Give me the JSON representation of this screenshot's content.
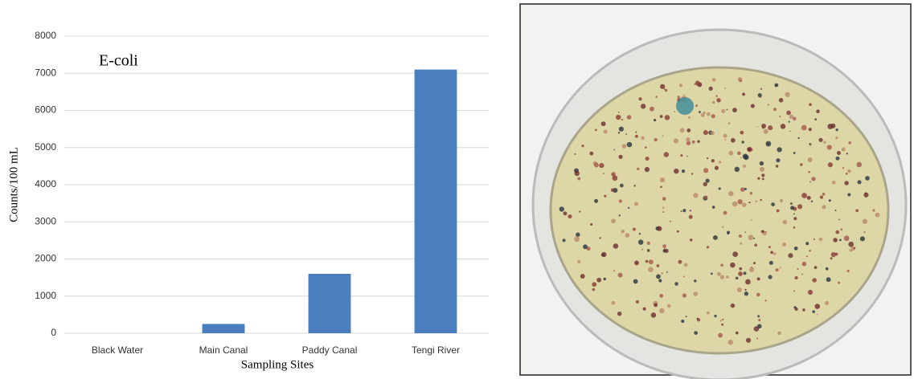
{
  "chart_data": {
    "type": "bar",
    "annotation": "E-coli",
    "y_label": "Counts/100 mL",
    "x_label": "Sampling Sites",
    "categories": [
      "Black Water",
      "Main Canal",
      "Paddy Canal",
      "Tengi River"
    ],
    "values": [
      0,
      250,
      1600,
      7100
    ],
    "color": "#4a7ebf",
    "ylim": [
      0,
      8000
    ],
    "yticks": [
      0,
      1000,
      2000,
      3000,
      4000,
      5000,
      6000,
      7000,
      8000
    ],
    "grid": true
  }
}
